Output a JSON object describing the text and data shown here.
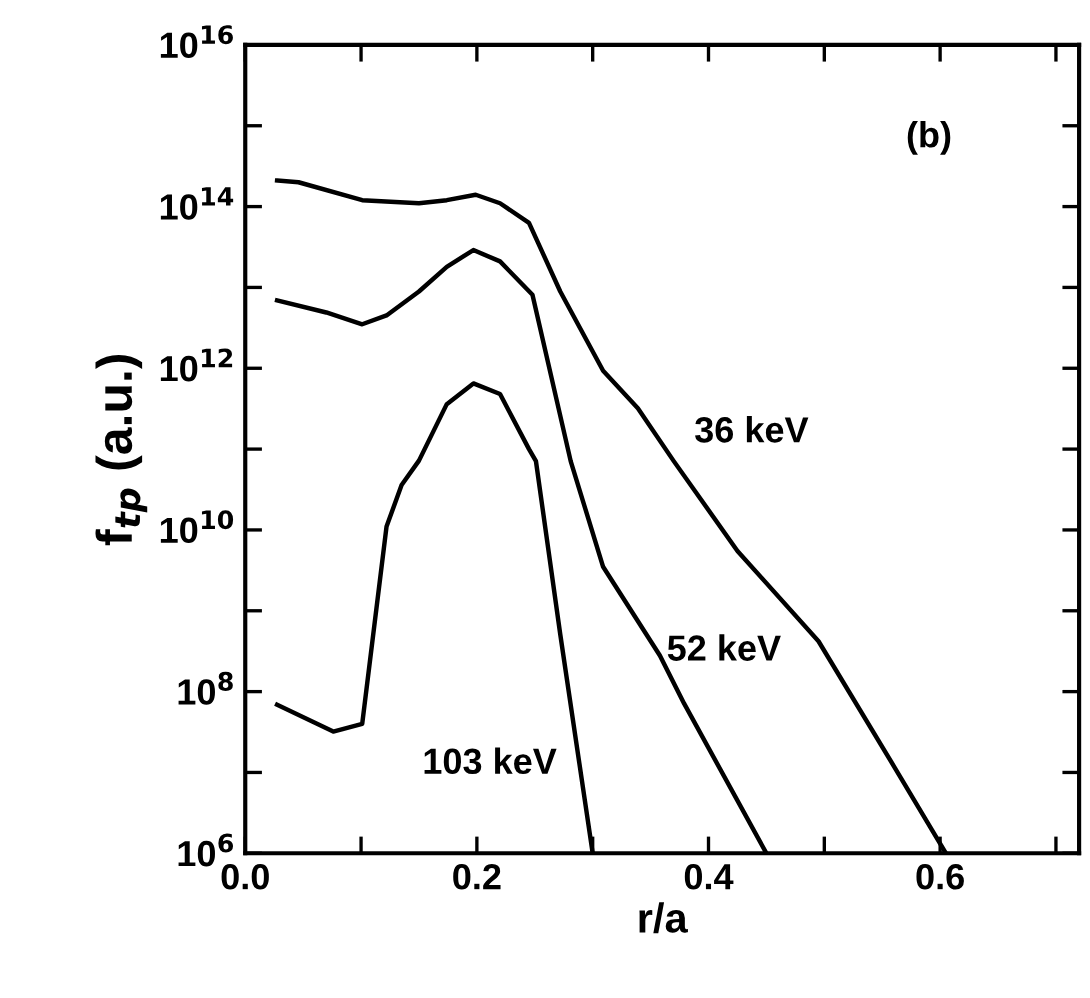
{
  "chart_data": {
    "type": "line",
    "xlabel": "r/a",
    "ylabel": "f$_{tp}$ (a.u.)",
    "log": "y",
    "grid": false,
    "marker": "none",
    "line_style": "solid",
    "xlim": [
      0,
      0.72
    ],
    "ylim": [
      1000000.0,
      1e+16
    ],
    "xticks": [
      {
        "value": 0,
        "label": "0.0"
      },
      {
        "value": 0.1,
        "label": null
      },
      {
        "value": 0.2,
        "label": "0.2"
      },
      {
        "value": 0.3,
        "label": null
      },
      {
        "value": 0.4,
        "label": "0.4"
      },
      {
        "value": 0.5,
        "label": null
      },
      {
        "value": 0.6,
        "label": "0.6"
      },
      {
        "value": 0.7,
        "label": null
      }
    ],
    "yticks": [
      {
        "value": 1000000.0,
        "label": "10$^{6}$"
      },
      {
        "value": 10000000.0,
        "label": null
      },
      {
        "value": 100000000.0,
        "label": "10$^{8}$"
      },
      {
        "value": 1000000000.0,
        "label": null
      },
      {
        "value": 10000000000.0,
        "label": "10$^{10}$"
      },
      {
        "value": 100000000000.0,
        "label": null
      },
      {
        "value": 1000000000000.0,
        "label": "10$^{12}$"
      },
      {
        "value": 10000000000000.0,
        "label": null
      },
      {
        "value": 100000000000000.0,
        "label": "10$^{14}$"
      },
      {
        "value": 1000000000000000.0,
        "label": null
      },
      {
        "value": 1e+16,
        "label": "10$^{16}$"
      }
    ],
    "series": [
      {
        "name": "36 keV",
        "color": "#000000",
        "x": [
          0.0275,
          0.046,
          0.101,
          0.15,
          0.174,
          0.199,
          0.22,
          0.245,
          0.272,
          0.309,
          0.339,
          0.37,
          0.425,
          0.495,
          0.56,
          0.605
        ],
        "values": [
          210000000000000.0,
          200000000000000.0,
          120000000000000.0,
          110000000000000.0,
          120000000000000.0,
          140000000000000.0,
          110000000000000.0,
          63000000000000.0,
          8900000000000.0,
          930000000000.0,
          320000000000.0,
          71000000000.0,
          5500000000.0,
          420000000.0,
          12000000.0,
          1000000.0
        ]
      },
      {
        "name": "52 keV",
        "color": "#000000",
        "x": [
          0.0275,
          0.07,
          0.101,
          0.122,
          0.15,
          0.174,
          0.197,
          0.22,
          0.248,
          0.281,
          0.309,
          0.358,
          0.379,
          0.45
        ],
        "values": [
          6900000000000.0,
          4900000000000.0,
          3500000000000.0,
          4500000000000.0,
          8900000000000.0,
          18000000000000.0,
          29000000000000.0,
          21000000000000.0,
          8100000000000.0,
          71000000000.0,
          3500000000.0,
          280000000.0,
          71000000.0,
          1000000.0
        ]
      },
      {
        "name": "103 keV",
        "color": "#000000",
        "x": [
          0.0275,
          0.076,
          0.101,
          0.122,
          0.135,
          0.15,
          0.174,
          0.197,
          0.22,
          0.245,
          0.251,
          0.272,
          0.3
        ],
        "values": [
          69000000.0,
          32000000.0,
          40000000.0,
          11000000000.0,
          36000000000.0,
          72000000000.0,
          360000000000.0,
          650000000000.0,
          480000000000.0,
          100000000000.0,
          71000000000.0,
          510000000.0,
          1000000.0
        ]
      }
    ],
    "annotations": [
      "(b)"
    ]
  }
}
